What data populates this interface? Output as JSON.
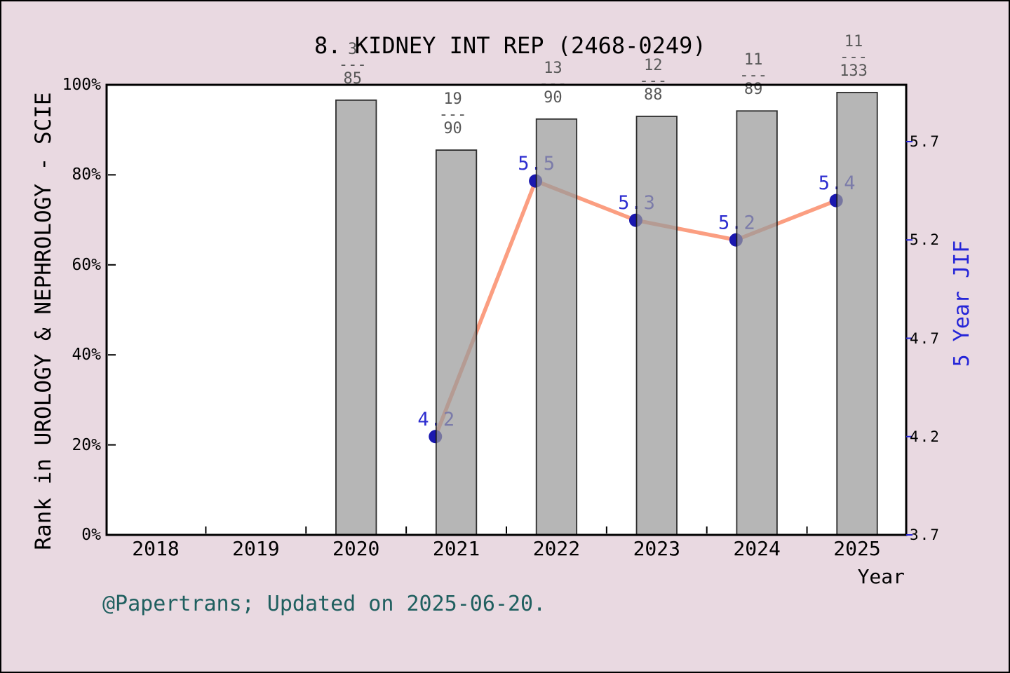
{
  "title": "8. KIDNEY INT REP (2468-0249)",
  "footer": "@Papertrans; Updated on 2025-06-20.",
  "axes": {
    "left": {
      "label": "Rank in UROLOGY & NEPHROLOGY - SCIE",
      "ticks": [
        "0%",
        "20%",
        "40%",
        "60%",
        "80%",
        "100%"
      ],
      "tick_values": [
        0,
        20,
        40,
        60,
        80,
        100
      ]
    },
    "right": {
      "label": "5 Year JIF",
      "ticks": [
        "3.7",
        "4.2",
        "4.7",
        "5.2",
        "5.7"
      ],
      "tick_values": [
        3.7,
        4.2,
        4.7,
        5.2,
        5.7
      ]
    },
    "x": {
      "label": "Year",
      "ticks": [
        "2018",
        "2019",
        "2020",
        "2021",
        "2022",
        "2023",
        "2024",
        "2025"
      ],
      "tick_values": [
        2018,
        2019,
        2020,
        2021,
        2022,
        2023,
        2024,
        2025
      ],
      "minor_tick_values": [
        2018.5,
        2019.5,
        2020.5,
        2021.5,
        2022.5,
        2023.5,
        2024.5
      ]
    }
  },
  "chart_data": {
    "type": "bar+line",
    "title": "8. KIDNEY INT REP (2468-0249)",
    "xlabel": "Year",
    "ylabel_left": "Rank in UROLOGY & NEPHROLOGY - SCIE",
    "ylabel_right": "5 Year JIF",
    "xlim": [
      2017.5,
      2025.5
    ],
    "ylim_left_percent": [
      0,
      100
    ],
    "ylim_right_jif": [
      3.7,
      5.99
    ],
    "grid": "off",
    "legend": "none",
    "bars": {
      "name": "Rank in category (rank/total journals)",
      "points": [
        {
          "year": 2020,
          "rank": "3",
          "total": "85",
          "percentile": 96.6
        },
        {
          "year": 2021,
          "rank": "19",
          "total": "90",
          "percentile": 85.5
        },
        {
          "year": 2022,
          "rank": "13",
          "total": "90",
          "percentile": 92.4
        },
        {
          "year": 2023,
          "rank": "12",
          "total": "88",
          "percentile": 93.0
        },
        {
          "year": 2024,
          "rank": "11",
          "total": "89",
          "percentile": 94.2
        },
        {
          "year": 2025,
          "rank": "11",
          "total": "133",
          "percentile": 98.3
        }
      ],
      "fraction_dash": "---"
    },
    "line": {
      "name": "5 Year JIF",
      "points": [
        {
          "year": 2021,
          "value": 4.2,
          "label": "4.2"
        },
        {
          "year": 2022,
          "value": 5.5,
          "label": "5.5"
        },
        {
          "year": 2023,
          "value": 5.3,
          "label": "5.3"
        },
        {
          "year": 2024,
          "value": 5.2,
          "label": "5.2"
        },
        {
          "year": 2025,
          "value": 5.4,
          "label": "5.4"
        }
      ]
    },
    "colors": {
      "background": "#e9d9e1",
      "plot_background": "#ffffff",
      "bar_fill": "#9a9a9a",
      "bar_edge": "#141414",
      "line": "#fb9e81",
      "dot": "#1a18af",
      "value_label": "#2d2dd0",
      "right_axis_text": "#2525d8",
      "fraction_text": "#575757",
      "footer_text": "#1f5f5f",
      "axis_text": "#000000"
    }
  }
}
